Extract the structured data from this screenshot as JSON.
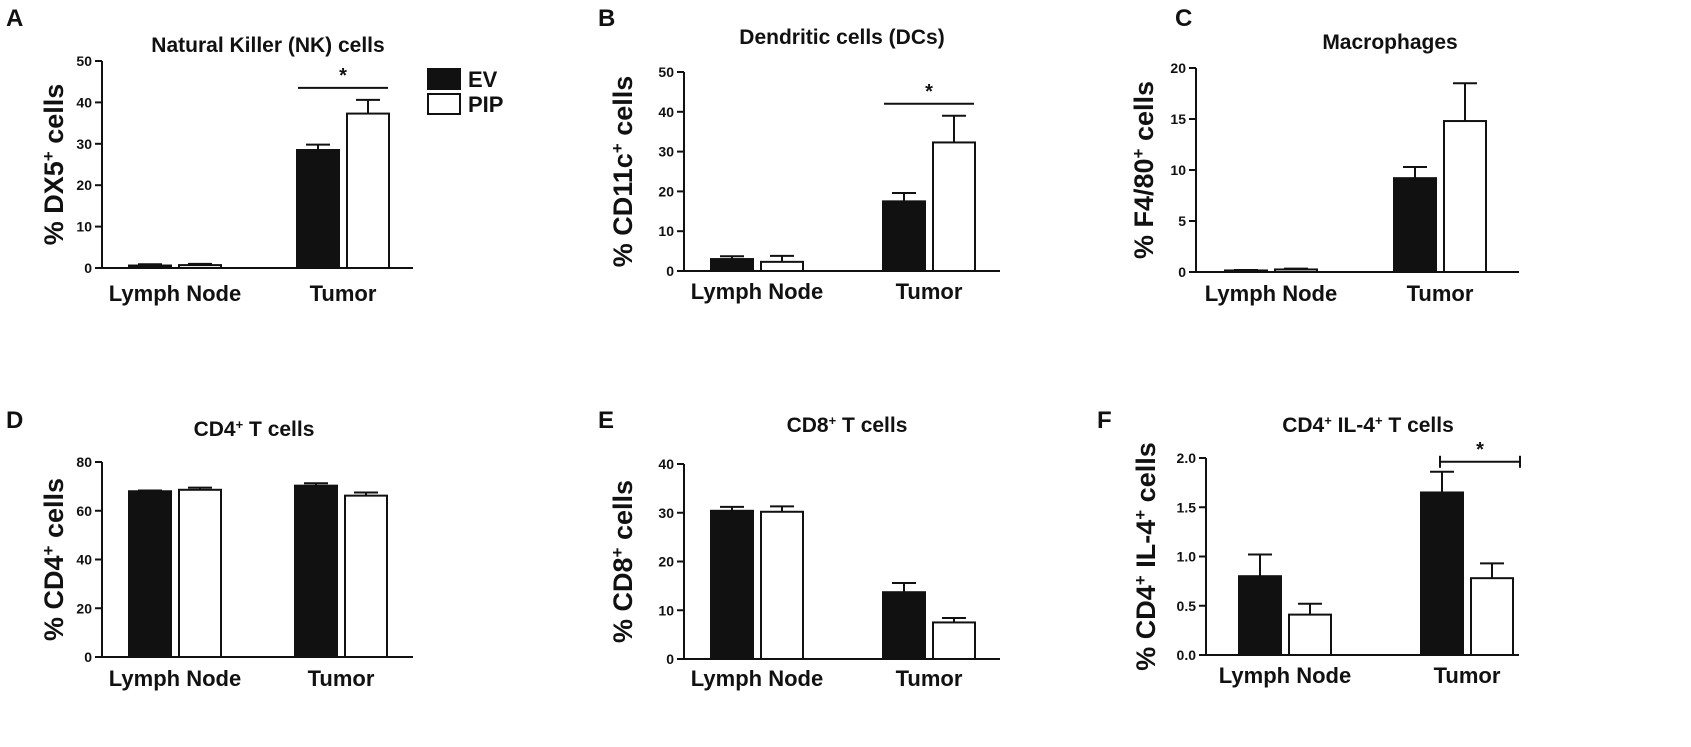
{
  "legend": {
    "entries": [
      {
        "label": "EV",
        "color": "#111111"
      },
      {
        "label": "PIP",
        "color": "#ffffff"
      }
    ]
  },
  "chart_data": [
    {
      "panel": "A",
      "type": "bar",
      "title": "Natural Killer (NK) cells",
      "ylabel": {
        "pre": "% DX5",
        "sup": "+",
        "post": " cells"
      },
      "categories": [
        "Lymph Node",
        "Tumor"
      ],
      "ylim": [
        0,
        50
      ],
      "yticks": [
        "0",
        "10",
        "20",
        "30",
        "40",
        "50"
      ],
      "series": [
        {
          "name": "EV",
          "values": [
            0.6,
            28.5
          ],
          "errors": [
            0.3,
            1.3
          ]
        },
        {
          "name": "PIP",
          "values": [
            0.7,
            37.3
          ],
          "errors": [
            0.3,
            3.3
          ]
        }
      ],
      "significance": [
        {
          "category": 1,
          "label": "*"
        }
      ]
    },
    {
      "panel": "B",
      "type": "bar",
      "title": "Dendritic cells (DCs)",
      "ylabel": {
        "pre": "% CD11c",
        "sup": "+",
        "post": " cells"
      },
      "categories": [
        "Lymph Node",
        "Tumor"
      ],
      "ylim": [
        0,
        50
      ],
      "yticks": [
        "0",
        "10",
        "20",
        "30",
        "40",
        "50"
      ],
      "series": [
        {
          "name": "EV",
          "values": [
            3.0,
            17.5
          ],
          "errors": [
            0.7,
            2.1
          ]
        },
        {
          "name": "PIP",
          "values": [
            2.3,
            32.3
          ],
          "errors": [
            1.5,
            6.7
          ]
        }
      ],
      "significance": [
        {
          "category": 1,
          "label": "*"
        }
      ]
    },
    {
      "panel": "C",
      "type": "bar",
      "title": "Macrophages",
      "ylabel": {
        "pre": "% F4/80",
        "sup": "+",
        "post": " cells"
      },
      "categories": [
        "Lymph Node",
        "Tumor"
      ],
      "ylim": [
        0,
        20
      ],
      "yticks": [
        "0",
        "5",
        "10",
        "15",
        "20"
      ],
      "series": [
        {
          "name": "EV",
          "values": [
            0.15,
            9.2
          ],
          "errors": [
            0.05,
            1.1
          ]
        },
        {
          "name": "PIP",
          "values": [
            0.25,
            14.8
          ],
          "errors": [
            0.08,
            3.7
          ]
        }
      ],
      "significance": []
    },
    {
      "panel": "D",
      "type": "bar",
      "title": {
        "pre": "CD4",
        "sup": "+",
        "post": " T cells"
      },
      "ylabel": {
        "pre": "% CD4",
        "sup": "+",
        "post": " cells"
      },
      "categories": [
        "Lymph Node",
        "Tumor"
      ],
      "ylim": [
        0,
        80
      ],
      "yticks": [
        "0",
        "20",
        "40",
        "60",
        "80"
      ],
      "series": [
        {
          "name": "EV",
          "values": [
            68.0,
            70.3
          ],
          "errors": [
            0.3,
            1.0
          ]
        },
        {
          "name": "PIP",
          "values": [
            68.6,
            66.2
          ],
          "errors": [
            0.9,
            1.3
          ]
        }
      ],
      "significance": []
    },
    {
      "panel": "E",
      "type": "bar",
      "title": {
        "pre": "CD8",
        "sup": "+",
        "post": " T cells"
      },
      "ylabel": {
        "pre": "% CD8",
        "sup": "+",
        "post": " cells"
      },
      "categories": [
        "Lymph Node",
        "Tumor"
      ],
      "ylim": [
        0,
        40
      ],
      "yticks": [
        "0",
        "10",
        "20",
        "30",
        "40"
      ],
      "series": [
        {
          "name": "EV",
          "values": [
            30.4,
            13.7
          ],
          "errors": [
            0.8,
            1.9
          ]
        },
        {
          "name": "PIP",
          "values": [
            30.2,
            7.5
          ],
          "errors": [
            1.1,
            0.9
          ]
        }
      ],
      "significance": []
    },
    {
      "panel": "F",
      "type": "bar",
      "title": {
        "pre": "CD4",
        "sup": "+",
        "post": " IL-4",
        "sup2": "+",
        "post2": " T cells"
      },
      "ylabel": {
        "pre": "% CD4",
        "sup": "+",
        "post": " IL-4",
        "sup2": "+",
        "post2": " cells"
      },
      "categories": [
        "Lymph Node",
        "Tumor"
      ],
      "ylim": [
        0,
        2.0
      ],
      "yticks": [
        "0.0",
        "0.5",
        "1.0",
        "1.5",
        "2.0"
      ],
      "series": [
        {
          "name": "EV",
          "values": [
            0.8,
            1.65
          ],
          "errors": [
            0.22,
            0.21
          ]
        },
        {
          "name": "PIP",
          "values": [
            0.41,
            0.78
          ],
          "errors": [
            0.11,
            0.15
          ]
        }
      ],
      "significance": [
        {
          "category": 1,
          "label": "*",
          "style": "bracket"
        }
      ]
    }
  ]
}
